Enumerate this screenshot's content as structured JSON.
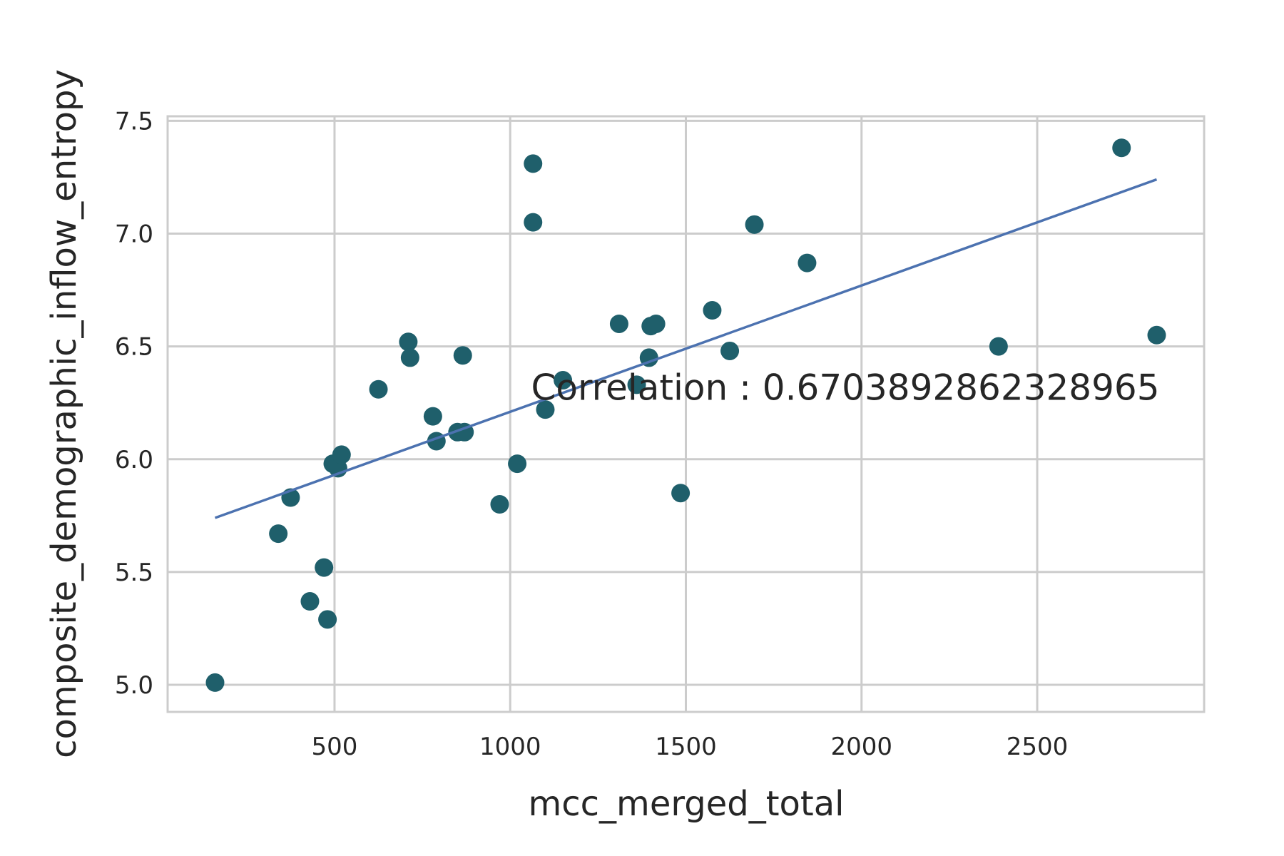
{
  "chart_data": {
    "type": "scatter",
    "xlabel": "mcc_merged_total",
    "ylabel": "composite_demographic_inflow_entropy",
    "xlim": [
      25,
      2975
    ],
    "ylim": [
      4.88,
      7.52
    ],
    "xticks": [
      500,
      1000,
      1500,
      2000,
      2500
    ],
    "yticks": [
      5.0,
      5.5,
      6.0,
      6.5,
      7.0,
      7.5
    ],
    "xtick_labels": [
      "500",
      "1000",
      "1500",
      "2000",
      "2500"
    ],
    "ytick_labels": [
      "5.0",
      "5.5",
      "6.0",
      "6.5",
      "7.0",
      "7.5"
    ],
    "grid": true,
    "annotation": "Correlation : 0.6703892862328965",
    "annotation_position": {
      "x": 1100,
      "y": 6.32
    },
    "point_color": "#1f5f6b",
    "line_color": "#4c72b0",
    "regression_line": {
      "x": [
        160,
        2840
      ],
      "y": [
        5.74,
        7.24
      ]
    },
    "points": [
      {
        "x": 160,
        "y": 5.01
      },
      {
        "x": 340,
        "y": 5.67
      },
      {
        "x": 375,
        "y": 5.83
      },
      {
        "x": 430,
        "y": 5.37
      },
      {
        "x": 470,
        "y": 5.52
      },
      {
        "x": 480,
        "y": 5.29
      },
      {
        "x": 495,
        "y": 5.98
      },
      {
        "x": 510,
        "y": 5.96
      },
      {
        "x": 520,
        "y": 6.02
      },
      {
        "x": 625,
        "y": 6.31
      },
      {
        "x": 710,
        "y": 6.52
      },
      {
        "x": 715,
        "y": 6.45
      },
      {
        "x": 780,
        "y": 6.19
      },
      {
        "x": 790,
        "y": 6.08
      },
      {
        "x": 850,
        "y": 6.12
      },
      {
        "x": 865,
        "y": 6.46
      },
      {
        "x": 870,
        "y": 6.12
      },
      {
        "x": 970,
        "y": 5.8
      },
      {
        "x": 1020,
        "y": 5.98
      },
      {
        "x": 1065,
        "y": 7.31
      },
      {
        "x": 1065,
        "y": 7.05
      },
      {
        "x": 1100,
        "y": 6.22
      },
      {
        "x": 1150,
        "y": 6.35
      },
      {
        "x": 1310,
        "y": 6.6
      },
      {
        "x": 1360,
        "y": 6.33
      },
      {
        "x": 1395,
        "y": 6.45
      },
      {
        "x": 1400,
        "y": 6.59
      },
      {
        "x": 1415,
        "y": 6.6
      },
      {
        "x": 1485,
        "y": 5.85
      },
      {
        "x": 1575,
        "y": 6.66
      },
      {
        "x": 1625,
        "y": 6.48
      },
      {
        "x": 1695,
        "y": 7.04
      },
      {
        "x": 1845,
        "y": 6.87
      },
      {
        "x": 2390,
        "y": 6.5
      },
      {
        "x": 2740,
        "y": 7.38
      },
      {
        "x": 2840,
        "y": 6.55
      }
    ]
  }
}
